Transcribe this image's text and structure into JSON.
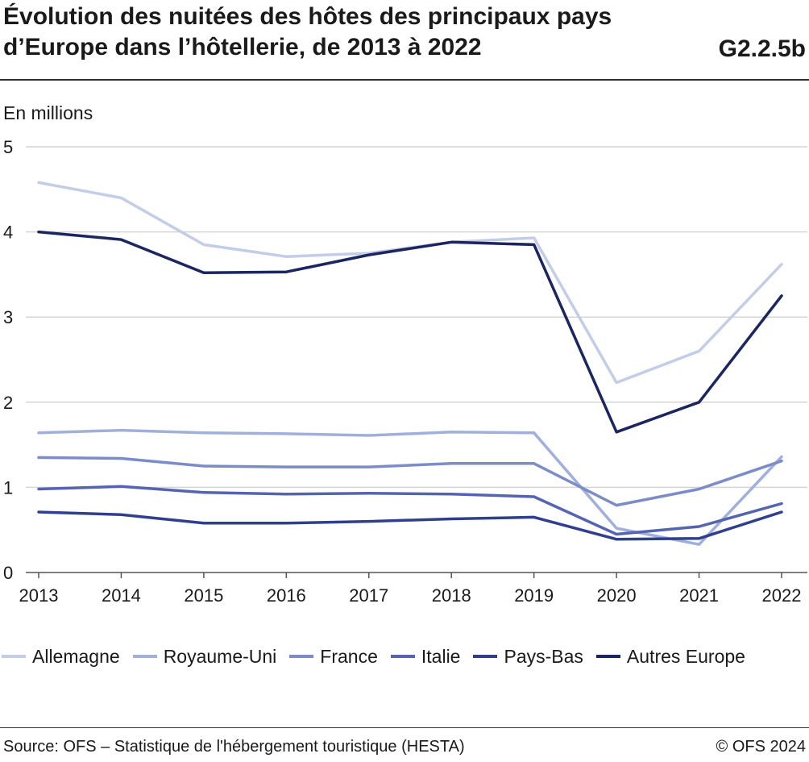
{
  "header": {
    "title_line1": "Évolution des nuitées des hôtes des principaux pays",
    "title_line2": "d’Europe dans l’hôtellerie, de 2013 à 2022",
    "chart_id": "G2.2.5b"
  },
  "footer": {
    "source": "Source: OFS – Statistique de l'hébergement touristique (HESTA)",
    "copyright": "© OFS 2024"
  },
  "chart_data": {
    "type": "line",
    "title": "Évolution des nuitées des hôtes des principaux pays d’Europe dans l’hôtellerie, de 2013 à 2022",
    "ylabel": "En millions",
    "xlabel": "",
    "ylim": [
      0,
      5
    ],
    "yticks": [
      0,
      1,
      2,
      3,
      4,
      5
    ],
    "grid": true,
    "legend_position": "bottom",
    "categories": [
      "2013",
      "2014",
      "2015",
      "2016",
      "2017",
      "2018",
      "2019",
      "2020",
      "2021",
      "2022"
    ],
    "series": [
      {
        "name": "Allemagne",
        "color": "#c3cde8",
        "values": [
          4.58,
          4.4,
          3.85,
          3.71,
          3.75,
          3.88,
          3.93,
          2.23,
          2.6,
          3.62
        ]
      },
      {
        "name": "Royaume-Uni",
        "color": "#a1afdb",
        "values": [
          1.64,
          1.67,
          1.64,
          1.63,
          1.61,
          1.65,
          1.64,
          0.52,
          0.33,
          1.36
        ]
      },
      {
        "name": "France",
        "color": "#7c8cc8",
        "values": [
          1.35,
          1.34,
          1.25,
          1.24,
          1.24,
          1.28,
          1.28,
          0.79,
          0.98,
          1.31
        ]
      },
      {
        "name": "Italie",
        "color": "#5464b0",
        "values": [
          0.98,
          1.01,
          0.94,
          0.92,
          0.93,
          0.92,
          0.89,
          0.45,
          0.54,
          0.81
        ]
      },
      {
        "name": "Pays-Bas",
        "color": "#2f3f8e",
        "values": [
          0.71,
          0.68,
          0.58,
          0.58,
          0.6,
          0.63,
          0.65,
          0.39,
          0.4,
          0.71
        ]
      },
      {
        "name": "Autres Europe",
        "color": "#1b2660",
        "values": [
          4.0,
          3.91,
          3.52,
          3.53,
          3.73,
          3.88,
          3.85,
          1.65,
          2.0,
          3.25
        ]
      }
    ]
  }
}
